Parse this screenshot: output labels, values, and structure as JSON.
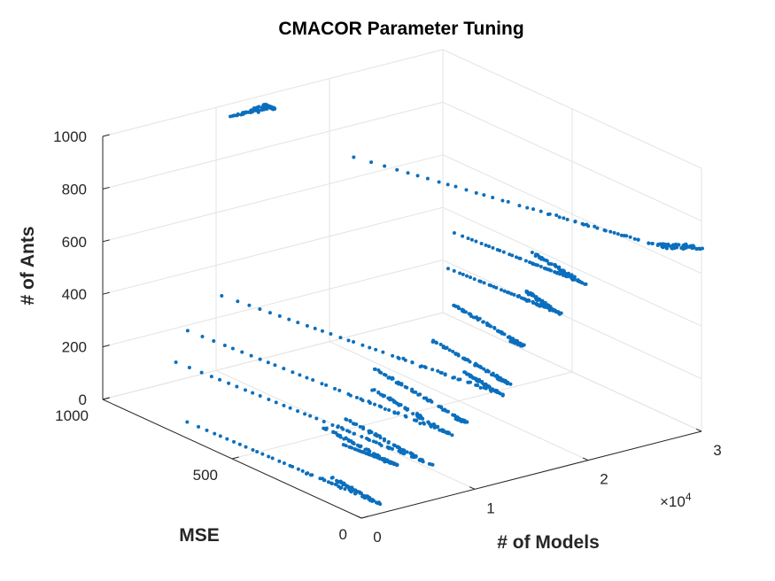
{
  "chart_data": {
    "type": "scatter",
    "title": "CMACOR Parameter Tuning",
    "xlabel": "# of Models",
    "ylabel": "MSE",
    "zlabel": "# of Ants",
    "x_exponent_label": "×10",
    "x_exponent_power": "4",
    "xlim": [
      0,
      30000
    ],
    "ylim": [
      0,
      1000
    ],
    "zlim": [
      0,
      1000
    ],
    "x_ticks": [
      0,
      10000,
      20000,
      30000
    ],
    "x_tick_labels": [
      "0",
      "1",
      "2",
      "3"
    ],
    "y_ticks": [
      0,
      500,
      1000
    ],
    "y_tick_labels": [
      "0",
      "500",
      "1000"
    ],
    "z_ticks": [
      0,
      200,
      400,
      600,
      800,
      1000
    ],
    "z_tick_labels": [
      "0",
      "200",
      "400",
      "600",
      "800",
      "1000"
    ],
    "grid": true,
    "marker_color": "#0b6fbd",
    "clusters": [
      {
        "name": "",
        "x_start": 2000,
        "x_min": 2800,
        "x_end": 3300,
        "y_start": 760,
        "y_min": 60,
        "y_end": 250,
        "z": 0
      },
      {
        "name": "",
        "x_start": 4800,
        "x_min": 5300,
        "x_end": 5800,
        "y_start": 280,
        "y_min": 100,
        "y_end": 400,
        "z": 100
      },
      {
        "name": "",
        "x_start": 5500,
        "x_min": 7300,
        "x_end": 8100,
        "y_start": 960,
        "y_min": 60,
        "y_end": 400,
        "z": 100
      },
      {
        "name": "",
        "x_start": 6800,
        "x_min": 8900,
        "x_end": 10000,
        "y_start": 970,
        "y_min": 50,
        "y_end": 380,
        "z": 200
      },
      {
        "name": "",
        "x_start": 11100,
        "x_min": 11300,
        "x_end": 12700,
        "y_start": 120,
        "y_min": 100,
        "y_end": 500,
        "z": 200
      },
      {
        "name": "",
        "x_start": 9800,
        "x_min": 13500,
        "x_end": 14100,
        "y_start": 970,
        "y_min": 60,
        "y_end": 220,
        "z": 300
      },
      {
        "name": "",
        "x_start": 15200,
        "x_min": 15300,
        "x_end": 16200,
        "y_start": 140,
        "y_min": 110,
        "y_end": 430,
        "z": 300
      },
      {
        "name": "",
        "x_start": 17300,
        "x_min": 17500,
        "x_end": 18600,
        "y_start": 180,
        "y_min": 150,
        "y_end": 450,
        "z": 400
      },
      {
        "name": "",
        "x_start": 19500,
        "x_min": 20300,
        "x_end": 21100,
        "y_start": 520,
        "y_min": 130,
        "y_end": 290,
        "z": 500
      },
      {
        "name": "",
        "x_start": 21000,
        "x_min": 22100,
        "x_end": 23000,
        "y_start": 560,
        "y_min": 120,
        "y_end": 340,
        "z": 600
      },
      {
        "name": "",
        "x_start": 21400,
        "x_min": 27800,
        "x_end": 29800,
        "y_start": 970,
        "y_min": 60,
        "y_end": 10,
        "z": 700
      },
      {
        "name": "",
        "x_start": 9700,
        "x_min": 13100,
        "x_end": 13100,
        "y_start": 930,
        "y_min": 930,
        "y_end": 930,
        "z": 1000
      }
    ]
  }
}
